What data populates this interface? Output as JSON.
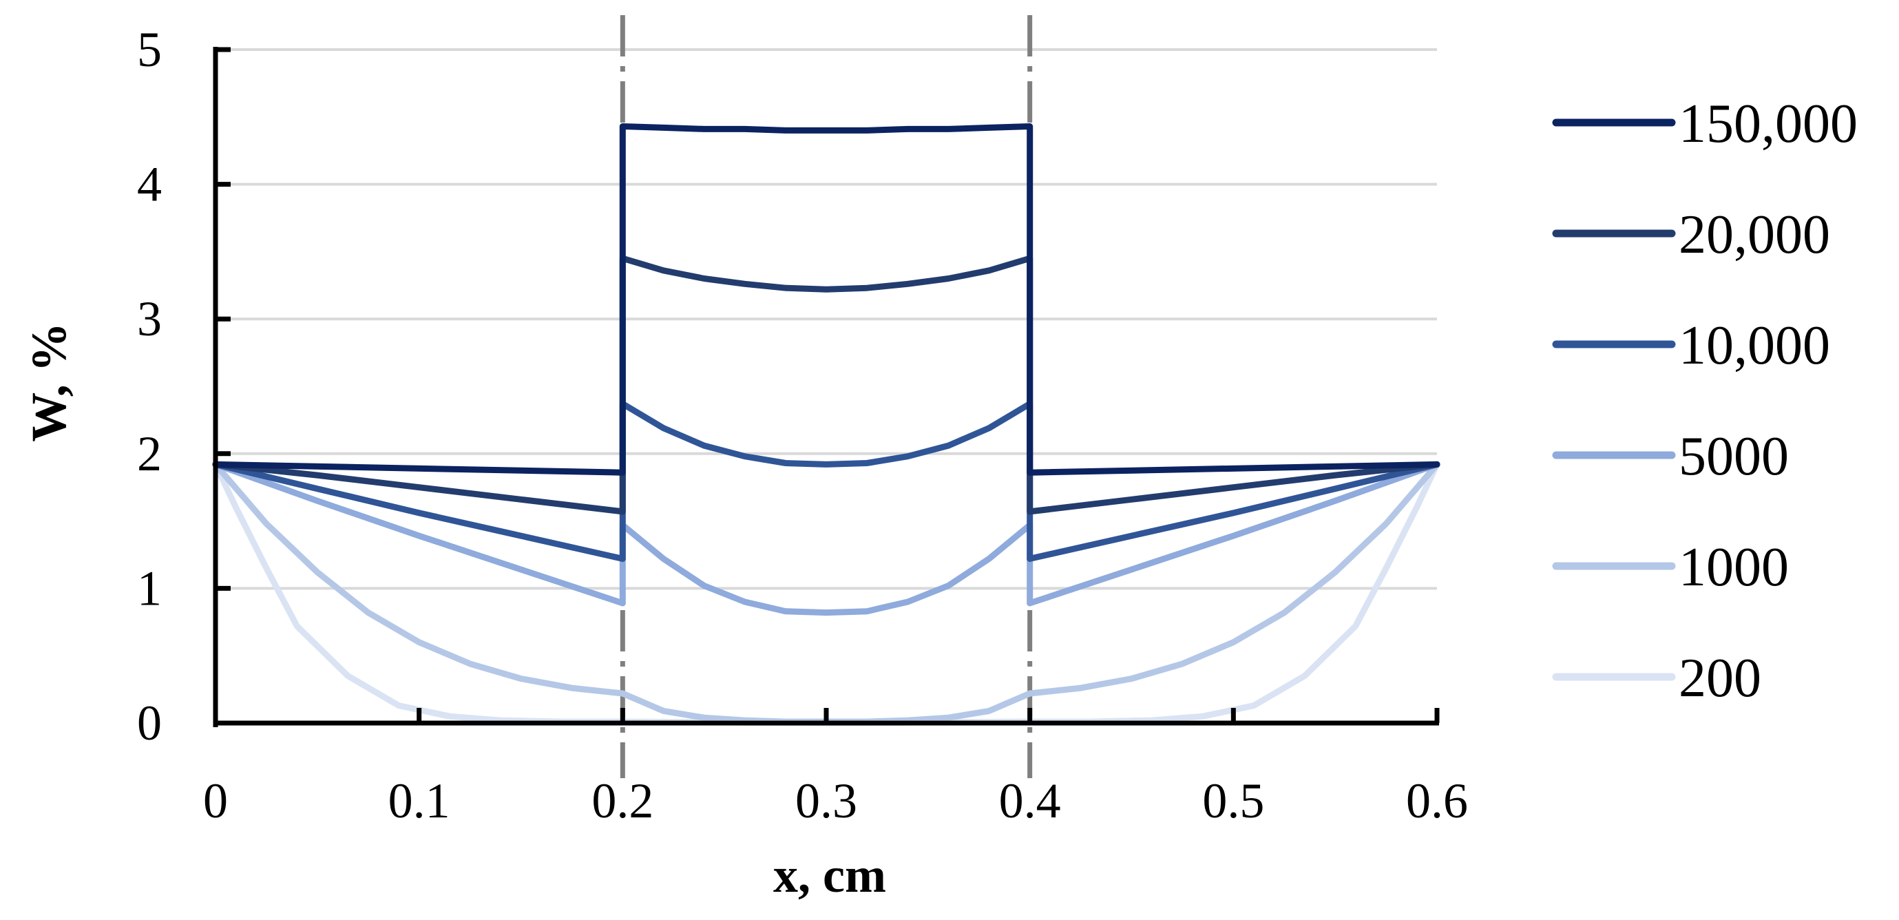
{
  "chart_data": {
    "type": "line",
    "title": "",
    "xlabel": "x, cm",
    "ylabel": "W, %",
    "xlim": [
      0,
      0.6
    ],
    "ylim": [
      0,
      5
    ],
    "x_ticks": [
      "0",
      "0.1",
      "0.2",
      "0.3",
      "0.4",
      "0.5",
      "0.6"
    ],
    "y_ticks": [
      "0",
      "1",
      "2",
      "3",
      "4",
      "5"
    ],
    "grid": "horizontal",
    "legend_position": "right",
    "boundaries": [
      0.2,
      0.4
    ],
    "series": [
      {
        "name": "150,000",
        "color": "#0b2360",
        "segments": [
          {
            "x": [
              0,
              0.2
            ],
            "y": [
              1.92,
              1.86
            ]
          },
          {
            "x": [
              0.2,
              0.2,
              0.22,
              0.24,
              0.26,
              0.28,
              0.3,
              0.32,
              0.34,
              0.36,
              0.38,
              0.4,
              0.4
            ],
            "y": [
              1.86,
              4.43,
              4.42,
              4.41,
              4.41,
              4.4,
              4.4,
              4.4,
              4.41,
              4.41,
              4.42,
              4.43,
              1.86
            ]
          },
          {
            "x": [
              0.4,
              0.6
            ],
            "y": [
              1.86,
              1.92
            ]
          }
        ]
      },
      {
        "name": "20,000",
        "color": "#233c6e",
        "segments": [
          {
            "x": [
              0,
              0.05,
              0.1,
              0.15,
              0.2
            ],
            "y": [
              1.92,
              1.84,
              1.75,
              1.66,
              1.57
            ]
          },
          {
            "x": [
              0.2,
              0.2,
              0.22,
              0.24,
              0.26,
              0.28,
              0.3,
              0.32,
              0.34,
              0.36,
              0.38,
              0.4,
              0.4
            ],
            "y": [
              1.57,
              3.45,
              3.36,
              3.3,
              3.26,
              3.23,
              3.22,
              3.23,
              3.26,
              3.3,
              3.36,
              3.45,
              1.57
            ]
          },
          {
            "x": [
              0.4,
              0.45,
              0.5,
              0.55,
              0.6
            ],
            "y": [
              1.57,
              1.66,
              1.75,
              1.84,
              1.92
            ]
          }
        ]
      },
      {
        "name": "10,000",
        "color": "#2f5597",
        "segments": [
          {
            "x": [
              0,
              0.05,
              0.1,
              0.15,
              0.2
            ],
            "y": [
              1.92,
              1.74,
              1.56,
              1.39,
              1.22
            ]
          },
          {
            "x": [
              0.2,
              0.2,
              0.22,
              0.24,
              0.26,
              0.28,
              0.3,
              0.32,
              0.34,
              0.36,
              0.38,
              0.4,
              0.4
            ],
            "y": [
              1.22,
              2.37,
              2.19,
              2.06,
              1.98,
              1.93,
              1.92,
              1.93,
              1.98,
              2.06,
              2.19,
              2.37,
              1.22
            ]
          },
          {
            "x": [
              0.4,
              0.45,
              0.5,
              0.55,
              0.6
            ],
            "y": [
              1.22,
              1.39,
              1.56,
              1.74,
              1.92
            ]
          }
        ]
      },
      {
        "name": "5000",
        "color": "#8faadc",
        "segments": [
          {
            "x": [
              0,
              0.05,
              0.1,
              0.15,
              0.2
            ],
            "y": [
              1.92,
              1.65,
              1.39,
              1.14,
              0.89
            ]
          },
          {
            "x": [
              0.2,
              0.2,
              0.22,
              0.24,
              0.26,
              0.28,
              0.3,
              0.32,
              0.34,
              0.36,
              0.38,
              0.4,
              0.4
            ],
            "y": [
              0.89,
              1.47,
              1.22,
              1.02,
              0.9,
              0.83,
              0.82,
              0.83,
              0.9,
              1.02,
              1.22,
              1.47,
              0.89
            ]
          },
          {
            "x": [
              0.4,
              0.45,
              0.5,
              0.55,
              0.6
            ],
            "y": [
              0.89,
              1.14,
              1.39,
              1.65,
              1.92
            ]
          }
        ]
      },
      {
        "name": "1000",
        "color": "#b4c7e7",
        "segments": [
          {
            "x": [
              0,
              0.025,
              0.05,
              0.075,
              0.1,
              0.125,
              0.15,
              0.175,
              0.2
            ],
            "y": [
              1.92,
              1.48,
              1.12,
              0.82,
              0.6,
              0.44,
              0.33,
              0.26,
              0.22
            ]
          },
          {
            "x": [
              0.2,
              0.22,
              0.24,
              0.26,
              0.28,
              0.3,
              0.32,
              0.34,
              0.36,
              0.38,
              0.4
            ],
            "y": [
              0.22,
              0.09,
              0.04,
              0.02,
              0.01,
              0.01,
              0.01,
              0.02,
              0.04,
              0.09,
              0.22
            ]
          },
          {
            "x": [
              0.4,
              0.425,
              0.45,
              0.475,
              0.5,
              0.525,
              0.55,
              0.575,
              0.6
            ],
            "y": [
              0.22,
              0.26,
              0.33,
              0.44,
              0.6,
              0.82,
              1.12,
              1.48,
              1.92
            ]
          }
        ]
      },
      {
        "name": "200",
        "color": "#dae3f3",
        "segments": [
          {
            "x": [
              0,
              0.01,
              0.025,
              0.04,
              0.065,
              0.09,
              0.115,
              0.14,
              0.17,
              0.2
            ],
            "y": [
              1.92,
              1.6,
              1.15,
              0.72,
              0.35,
              0.13,
              0.05,
              0.02,
              0.01,
              0.01
            ]
          },
          {
            "x": [
              0.2,
              0.3,
              0.4
            ],
            "y": [
              0.01,
              0.0,
              0.01
            ]
          },
          {
            "x": [
              0.4,
              0.43,
              0.46,
              0.485,
              0.51,
              0.535,
              0.56,
              0.575,
              0.59,
              0.6
            ],
            "y": [
              0.01,
              0.01,
              0.02,
              0.05,
              0.13,
              0.35,
              0.72,
              1.15,
              1.6,
              1.92
            ]
          }
        ]
      }
    ]
  }
}
